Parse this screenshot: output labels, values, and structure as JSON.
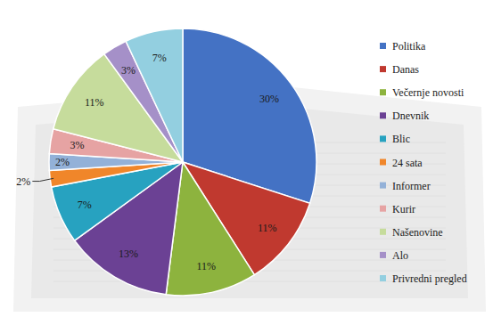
{
  "chart_data": {
    "type": "pie",
    "categories": [
      "Politika",
      "Danas",
      "Večernje novosti",
      "Dnevnik",
      "Blic",
      "24 sata",
      "Informer",
      "Kurir",
      "Našenovine",
      "Alo",
      "Privredni pregled"
    ],
    "values": [
      30,
      11,
      11,
      13,
      7,
      2,
      2,
      3,
      11,
      3,
      7
    ],
    "value_labels": [
      "30%",
      "11%",
      "11%",
      "13%",
      "7%",
      "2%",
      "2%",
      "3%",
      "11%",
      "3%",
      "7%"
    ],
    "colors": [
      "#4472c4",
      "#c0392f",
      "#8db33e",
      "#6b4194",
      "#27a2c0",
      "#f0862a",
      "#93b1d8",
      "#e6a3a3",
      "#c6dc9c",
      "#a590c8",
      "#93cfe0"
    ],
    "data_labels": true,
    "legend": "right"
  }
}
